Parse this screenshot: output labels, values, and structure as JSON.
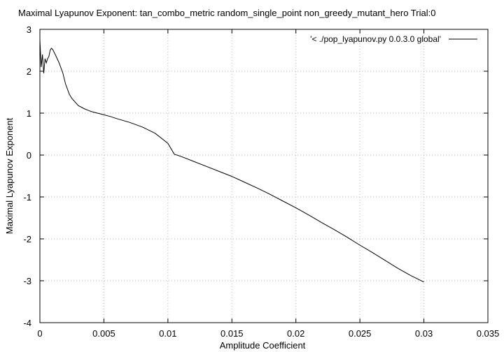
{
  "chart_data": {
    "type": "line",
    "title": "Maximal Lyapunov Exponent: tan_combo_metric random_single_point non_greedy_mutant_hero Trial:0",
    "xlabel": "Amplitude Coefficient",
    "ylabel": "Maximal Lyapunov Exponent",
    "xlim": [
      0,
      0.035
    ],
    "ylim": [
      -4,
      3
    ],
    "grid": true,
    "legend_position": "top-right",
    "xticks": [
      0,
      0.005,
      0.01,
      0.015,
      0.02,
      0.025,
      0.03,
      0.035
    ],
    "xtick_labels": [
      "0",
      "0.005",
      "0.01",
      "0.015",
      "0.02",
      "0.025",
      "0.03",
      "0.035"
    ],
    "yticks": [
      -4,
      -3,
      -2,
      -1,
      0,
      1,
      2,
      3
    ],
    "ytick_labels": [
      "-4",
      "-3",
      "-2",
      "-1",
      "0",
      "1",
      "2",
      "3"
    ],
    "series": [
      {
        "name": "'< ./pop_lyapunov.py 0.0.3.0 global'",
        "color": "#000000",
        "x": [
          0,
          0.0001,
          0.0002,
          0.0003,
          0.0004,
          0.0005,
          0.0006,
          0.0007,
          0.0008,
          0.0009,
          0.001,
          0.0012,
          0.0015,
          0.0018,
          0.002,
          0.0023,
          0.0025,
          0.003,
          0.0035,
          0.004,
          0.0045,
          0.005,
          0.0055,
          0.006,
          0.007,
          0.008,
          0.009,
          0.01,
          0.0105,
          0.011,
          0.012,
          0.013,
          0.014,
          0.015,
          0.016,
          0.017,
          0.018,
          0.019,
          0.02,
          0.021,
          0.022,
          0.023,
          0.024,
          0.025,
          0.026,
          0.027,
          0.028,
          0.029,
          0.03
        ],
        "y": [
          2.75,
          2.1,
          2.4,
          1.95,
          2.3,
          2.2,
          2.3,
          2.35,
          2.5,
          2.55,
          2.52,
          2.4,
          2.2,
          1.95,
          1.7,
          1.45,
          1.35,
          1.18,
          1.1,
          1.04,
          1.0,
          0.96,
          0.92,
          0.87,
          0.78,
          0.67,
          0.52,
          0.28,
          0.02,
          -0.03,
          -0.15,
          -0.27,
          -0.39,
          -0.51,
          -0.65,
          -0.79,
          -0.94,
          -1.1,
          -1.26,
          -1.43,
          -1.61,
          -1.78,
          -1.96,
          -2.15,
          -2.33,
          -2.52,
          -2.71,
          -2.88,
          -3.03
        ]
      }
    ]
  }
}
